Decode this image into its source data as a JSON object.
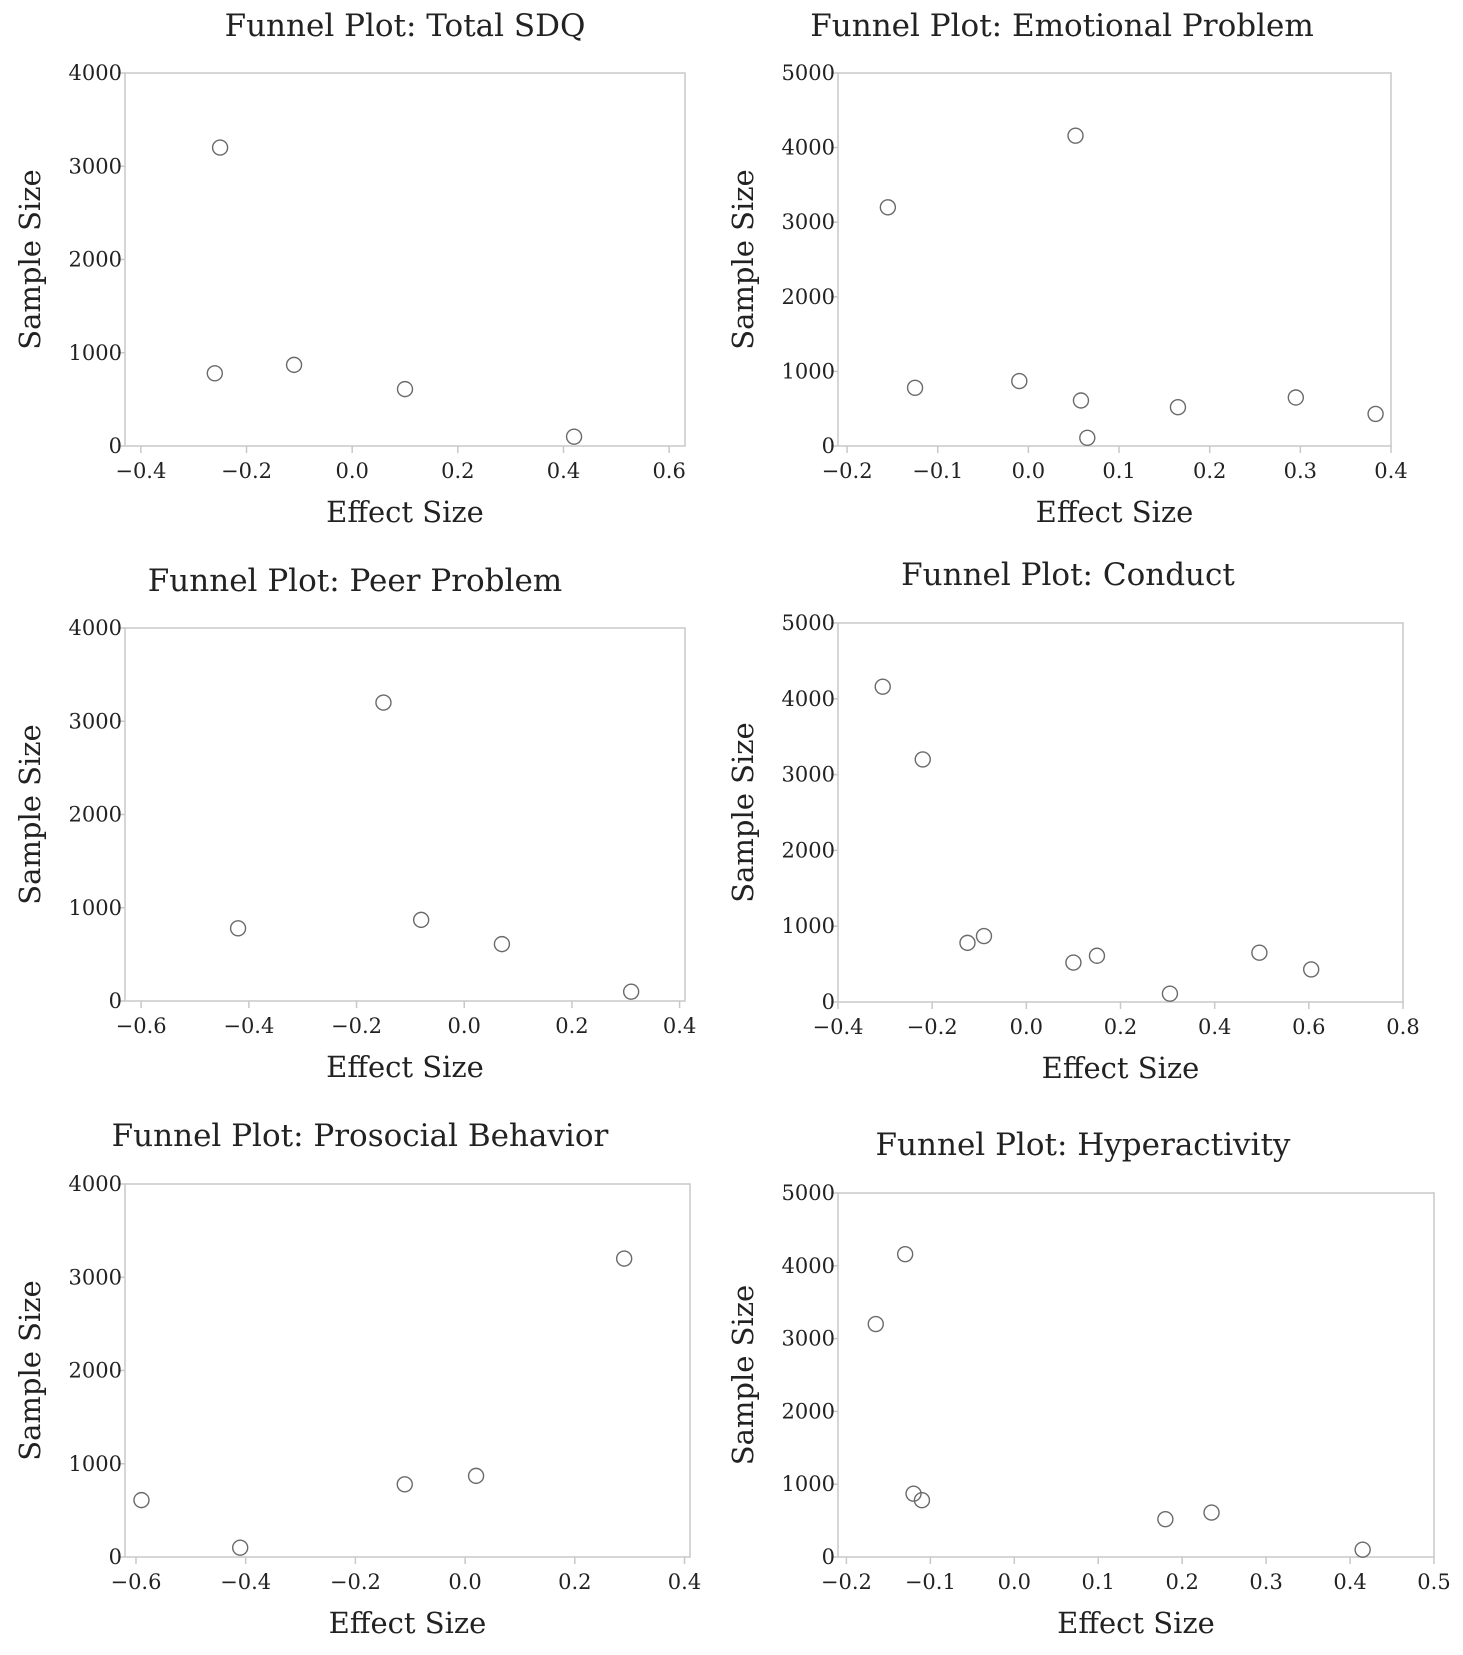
{
  "colors": {
    "frame": "#c8c8c8",
    "marker": "#6a6a6a",
    "text": "#222222"
  },
  "chart_data": [
    {
      "type": "scatter",
      "title": "Funnel Plot: Total SDQ",
      "xlabel": "Effect Size",
      "ylabel": "Sample Size",
      "xlim": [
        -0.43,
        0.63
      ],
      "ylim": [
        0,
        4000
      ],
      "xticks": [
        -0.4,
        -0.2,
        0.0,
        0.2,
        0.4,
        0.6
      ],
      "xtick_labels": [
        "−0.4",
        "−0.2",
        "0.0",
        "0.2",
        "0.4",
        "0.6"
      ],
      "yticks": [
        0,
        1000,
        2000,
        3000,
        4000
      ],
      "ytick_labels": [
        "0",
        "1000",
        "2000",
        "3000",
        "4000"
      ],
      "grid": false,
      "points": [
        {
          "x": -0.25,
          "y": 3200
        },
        {
          "x": -0.26,
          "y": 780
        },
        {
          "x": -0.11,
          "y": 870
        },
        {
          "x": 0.1,
          "y": 610
        },
        {
          "x": 0.42,
          "y": 100
        }
      ]
    },
    {
      "type": "scatter",
      "title": "Funnel Plot: Emotional Problem",
      "xlabel": "Effect Size",
      "ylabel": "Sample Size",
      "xlim": [
        -0.21,
        0.4
      ],
      "ylim": [
        0,
        5000
      ],
      "xticks": [
        -0.2,
        -0.1,
        0.0,
        0.1,
        0.2,
        0.3,
        0.4
      ],
      "xtick_labels": [
        "−0.2",
        "−0.1",
        "0.0",
        "0.1",
        "0.2",
        "0.3",
        "0.4"
      ],
      "yticks": [
        0,
        1000,
        2000,
        3000,
        4000,
        5000
      ],
      "ytick_labels": [
        "0",
        "1000",
        "2000",
        "3000",
        "4000",
        "5000"
      ],
      "grid": false,
      "points": [
        {
          "x": -0.155,
          "y": 3200
        },
        {
          "x": 0.052,
          "y": 4160
        },
        {
          "x": -0.125,
          "y": 780
        },
        {
          "x": -0.01,
          "y": 870
        },
        {
          "x": 0.058,
          "y": 610
        },
        {
          "x": 0.065,
          "y": 110
        },
        {
          "x": 0.165,
          "y": 520
        },
        {
          "x": 0.295,
          "y": 650
        },
        {
          "x": 0.383,
          "y": 430
        }
      ]
    },
    {
      "type": "scatter",
      "title": "Funnel Plot: Peer Problem",
      "xlabel": "Effect Size",
      "ylabel": "Sample Size",
      "xlim": [
        -0.63,
        0.41
      ],
      "ylim": [
        0,
        4000
      ],
      "xticks": [
        -0.6,
        -0.4,
        -0.2,
        0.0,
        0.2,
        0.4
      ],
      "xtick_labels": [
        "−0.6",
        "−0.4",
        "−0.2",
        "0.0",
        "0.2",
        "0.4"
      ],
      "yticks": [
        0,
        1000,
        2000,
        3000,
        4000
      ],
      "ytick_labels": [
        "0",
        "1000",
        "2000",
        "3000",
        "4000"
      ],
      "grid": false,
      "points": [
        {
          "x": -0.15,
          "y": 3200
        },
        {
          "x": -0.42,
          "y": 780
        },
        {
          "x": -0.08,
          "y": 870
        },
        {
          "x": 0.07,
          "y": 610
        },
        {
          "x": 0.31,
          "y": 100
        }
      ]
    },
    {
      "type": "scatter",
      "title": "Funnel Plot: Conduct",
      "xlabel": "Effect Size",
      "ylabel": "Sample Size",
      "xlim": [
        -0.4,
        0.8
      ],
      "ylim": [
        0,
        5000
      ],
      "xticks": [
        -0.4,
        -0.2,
        0.0,
        0.2,
        0.4,
        0.6,
        0.8
      ],
      "xtick_labels": [
        "−0.4",
        "−0.2",
        "0.0",
        "0.2",
        "0.4",
        "0.6",
        "0.8"
      ],
      "yticks": [
        0,
        1000,
        2000,
        3000,
        4000,
        5000
      ],
      "ytick_labels": [
        "0",
        "1000",
        "2000",
        "3000",
        "4000",
        "5000"
      ],
      "grid": false,
      "points": [
        {
          "x": -0.305,
          "y": 4160
        },
        {
          "x": -0.22,
          "y": 3200
        },
        {
          "x": -0.125,
          "y": 780
        },
        {
          "x": -0.09,
          "y": 870
        },
        {
          "x": 0.1,
          "y": 520
        },
        {
          "x": 0.15,
          "y": 610
        },
        {
          "x": 0.305,
          "y": 110
        },
        {
          "x": 0.495,
          "y": 650
        },
        {
          "x": 0.605,
          "y": 430
        }
      ]
    },
    {
      "type": "scatter",
      "title": "Funnel Plot: Prosocial Behavior",
      "xlabel": "Effect Size",
      "ylabel": "Sample Size",
      "xlim": [
        -0.62,
        0.41
      ],
      "ylim": [
        0,
        4000
      ],
      "xticks": [
        -0.6,
        -0.4,
        -0.2,
        0.0,
        0.2,
        0.4
      ],
      "xtick_labels": [
        "−0.6",
        "−0.4",
        "−0.2",
        "0.0",
        "0.2",
        "0.4"
      ],
      "yticks": [
        0,
        1000,
        2000,
        3000,
        4000
      ],
      "ytick_labels": [
        "0",
        "1000",
        "2000",
        "3000",
        "4000"
      ],
      "grid": false,
      "points": [
        {
          "x": 0.29,
          "y": 3200
        },
        {
          "x": -0.59,
          "y": 610
        },
        {
          "x": -0.41,
          "y": 100
        },
        {
          "x": -0.11,
          "y": 780
        },
        {
          "x": 0.02,
          "y": 870
        }
      ]
    },
    {
      "type": "scatter",
      "title": "Funnel Plot: Hyperactivity",
      "xlabel": "Effect Size",
      "ylabel": "Sample Size",
      "xlim": [
        -0.21,
        0.5
      ],
      "ylim": [
        0,
        5000
      ],
      "xticks": [
        -0.2,
        -0.1,
        0.0,
        0.1,
        0.2,
        0.3,
        0.4,
        0.5
      ],
      "xtick_labels": [
        "−0.2",
        "−0.1",
        "0.0",
        "0.1",
        "0.2",
        "0.3",
        "0.4",
        "0.5"
      ],
      "yticks": [
        0,
        1000,
        2000,
        3000,
        4000,
        5000
      ],
      "ytick_labels": [
        "0",
        "1000",
        "2000",
        "3000",
        "4000",
        "5000"
      ],
      "grid": false,
      "points": [
        {
          "x": -0.165,
          "y": 3200
        },
        {
          "x": -0.13,
          "y": 4160
        },
        {
          "x": -0.12,
          "y": 870
        },
        {
          "x": -0.11,
          "y": 780
        },
        {
          "x": 0.18,
          "y": 520
        },
        {
          "x": 0.235,
          "y": 610
        },
        {
          "x": 0.415,
          "y": 100
        }
      ]
    }
  ]
}
